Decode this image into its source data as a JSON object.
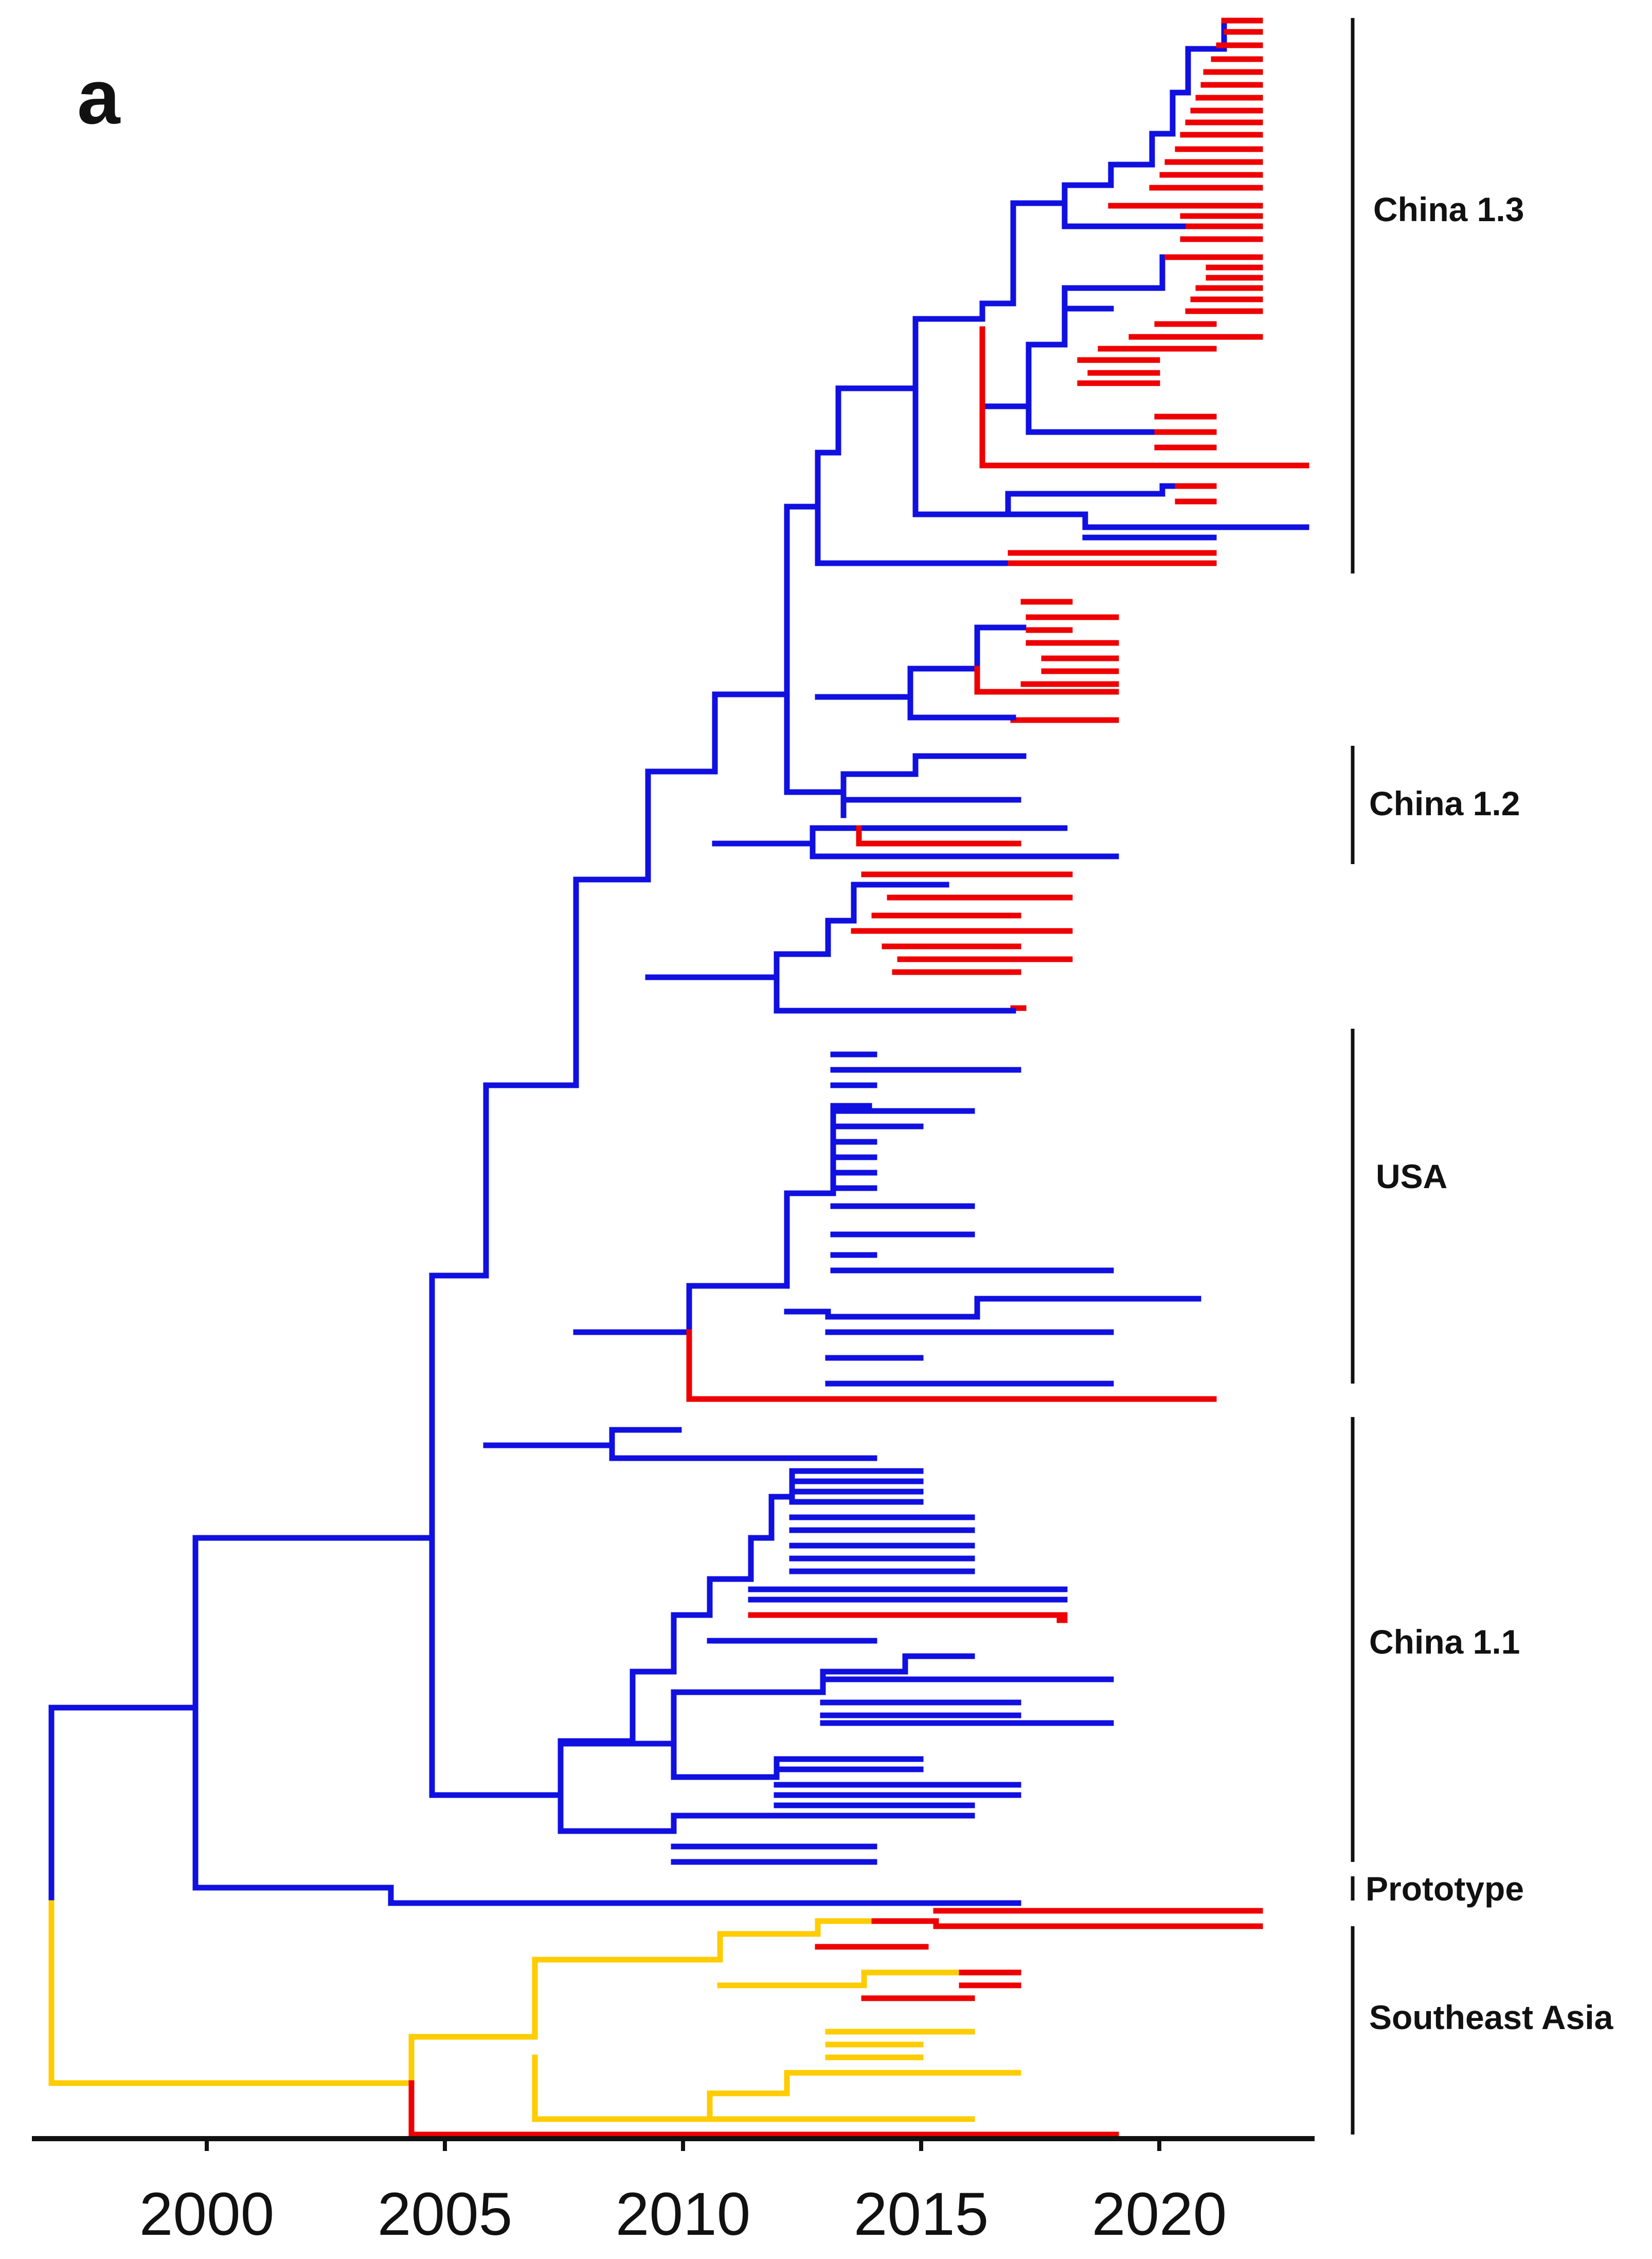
{
  "figure": {
    "panel_label": "a",
    "description": "time-scaled phylogenetic tree"
  },
  "colors": {
    "china_lineage": "#1010e0",
    "southeast_asia_lineage": "#ffcc00",
    "highlight_branches": "#ee0000",
    "axis": "#111111"
  },
  "axis": {
    "unit": "year",
    "range": [
      1996.4,
      2023.2
    ],
    "ticks": [
      {
        "year": 2000,
        "label": "2000"
      },
      {
        "year": 2005,
        "label": "2005"
      },
      {
        "year": 2010,
        "label": "2010"
      },
      {
        "year": 2015,
        "label": "2015"
      },
      {
        "year": 2020,
        "label": "2020"
      }
    ]
  },
  "clades": [
    {
      "label": "China 1.3",
      "group": "china_1_3"
    },
    {
      "label": "China 1.2",
      "group": "china_1_2"
    },
    {
      "label": "USA",
      "group": "usa"
    },
    {
      "label": "China 1.1",
      "group": "china_1_1"
    },
    {
      "label": "Prototype",
      "group": "prototype"
    },
    {
      "label": "Southeast Asia",
      "group": "southeast_asia"
    }
  ]
}
